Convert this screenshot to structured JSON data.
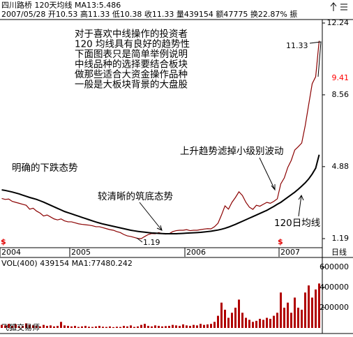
{
  "chart_data": [
    {
      "type": "line",
      "title": "四川路桥 120天均线 MA13:5.486",
      "subtitle": "2007/05/28 开10.53 高11.33 低10.38 收11.33 量439154 额47775 换22.87% 振",
      "annotations": [
        "对于喜欢中线操作的投资者",
        "120 均线具有良好的趋势性",
        "下面图表只是简单举例说明",
        "中线品种的选择要结合板块",
        "做那些适合大资金操作品种",
        "一般是大板块背景的大盘股",
        "11.33",
        "上升趋势滤掉小级别波动",
        "明确的下跌态势",
        "较清晰的筑底态势",
        "120日均线",
        "1.19"
      ],
      "period": "日线",
      "event_marker": "$",
      "categories": [
        "2004",
        null,
        null,
        null,
        null,
        null,
        null,
        null,
        null,
        null,
        null,
        null,
        null,
        null,
        null,
        null,
        null,
        null,
        null,
        null,
        "2005",
        null,
        null,
        null,
        null,
        null,
        null,
        null,
        null,
        null,
        null,
        null,
        null,
        null,
        null,
        null,
        null,
        null,
        null,
        null,
        null,
        null,
        null,
        null,
        null,
        null,
        null,
        null,
        null,
        null,
        null,
        null,
        null,
        "2006",
        null,
        null,
        null,
        null,
        null,
        null,
        null,
        null,
        null,
        null,
        null,
        null,
        null,
        null,
        null,
        null,
        null,
        null,
        null,
        null,
        null,
        null,
        null,
        null,
        null,
        null,
        "2007",
        null,
        null,
        null,
        null,
        null,
        null,
        null,
        null,
        null,
        null,
        null
      ],
      "series": [
        {
          "color": "#8b0000",
          "values": [
            3.25,
            3.2,
            3.22,
            3.1,
            3.05,
            3.0,
            2.95,
            2.9,
            2.7,
            2.75,
            2.6,
            2.5,
            2.35,
            2.4,
            2.3,
            2.2,
            2.15,
            2.2,
            2.1,
            2.05,
            2.05,
            2.0,
            1.95,
            1.92,
            1.9,
            1.88,
            1.85,
            1.8,
            1.8,
            1.75,
            1.7,
            1.65,
            1.62,
            1.55,
            1.5,
            1.4,
            1.33,
            1.3,
            1.25,
            1.2,
            1.19,
            1.3,
            1.4,
            1.45,
            1.44,
            1.5,
            1.45,
            1.42,
            1.44,
            1.55,
            1.6,
            1.62,
            1.62,
            1.65,
            1.6,
            1.62,
            1.62,
            1.65,
            1.68,
            1.7,
            1.69,
            1.8,
            1.98,
            2.4,
            2.87,
            2.7,
            3.05,
            3.3,
            3.59,
            3.4,
            3.05,
            2.8,
            2.69,
            2.9,
            2.85,
            2.95,
            3.05,
            3.0,
            3.1,
            3.23,
            4.0,
            4.3,
            4.84,
            5.2,
            5.73,
            5.9,
            6.09,
            6.98,
            8.06,
            9.13,
            9.49,
            11.33
          ]
        },
        {
          "color": "#000000",
          "values": [
            3.69,
            3.66,
            3.62,
            3.58,
            3.53,
            3.48,
            3.42,
            3.36,
            3.3,
            3.25,
            3.2,
            3.13,
            3.06,
            2.98,
            2.9,
            2.82,
            2.74,
            2.66,
            2.58,
            2.52,
            2.46,
            2.4,
            2.34,
            2.28,
            2.22,
            2.16,
            2.1,
            2.04,
            1.99,
            1.94,
            1.9,
            1.86,
            1.82,
            1.78,
            1.74,
            1.7,
            1.66,
            1.62,
            1.59,
            1.56,
            1.54,
            1.52,
            1.5,
            1.48,
            1.47,
            1.46,
            1.45,
            1.44,
            1.44,
            1.44,
            1.44,
            1.45,
            1.46,
            1.47,
            1.48,
            1.49,
            1.5,
            1.51,
            1.53,
            1.55,
            1.57,
            1.6,
            1.63,
            1.67,
            1.72,
            1.78,
            1.85,
            1.92,
            2.0,
            2.08,
            2.16,
            2.24,
            2.32,
            2.4,
            2.48,
            2.56,
            2.64,
            2.74,
            2.84,
            2.95,
            3.05,
            3.18,
            3.31,
            3.44,
            3.57,
            3.72,
            3.88,
            4.05,
            4.25,
            4.5,
            4.8,
            5.49
          ]
        }
      ],
      "price_marker": 9.41,
      "price_marker_color": "#ff0000",
      "ylim": [
        1.19,
        12.24
      ],
      "yticks": [
        1.19,
        4.88,
        8.56,
        12.24
      ]
    },
    {
      "type": "bar",
      "title": "VOL(400) 439154 MA1:77480.242",
      "watermark": "飞狐交易师",
      "color": "#b00000",
      "values": [
        30000,
        25000,
        40000,
        20000,
        35000,
        15000,
        20000,
        45000,
        30000,
        25000,
        20000,
        15000,
        30000,
        20000,
        25000,
        15000,
        20000,
        60000,
        25000,
        20000,
        15000,
        20000,
        10000,
        15000,
        20000,
        12000,
        10000,
        15000,
        20000,
        12000,
        10000,
        15000,
        8000,
        12000,
        10000,
        20000,
        15000,
        25000,
        10000,
        15000,
        30000,
        40000,
        20000,
        15000,
        25000,
        20000,
        15000,
        18000,
        20000,
        30000,
        25000,
        20000,
        35000,
        25000,
        20000,
        30000,
        25000,
        40000,
        30000,
        35000,
        40000,
        60000,
        120000,
        250000,
        180000,
        100000,
        150000,
        200000,
        280000,
        150000,
        100000,
        80000,
        60000,
        70000,
        90000,
        80000,
        100000,
        90000,
        120000,
        150000,
        350000,
        200000,
        250000,
        150000,
        300000,
        200000,
        180000,
        350000,
        420000,
        300000,
        380000,
        439154
      ],
      "ylim": [
        0,
        600000
      ],
      "yticks": [
        200000,
        400000,
        600000
      ]
    }
  ]
}
